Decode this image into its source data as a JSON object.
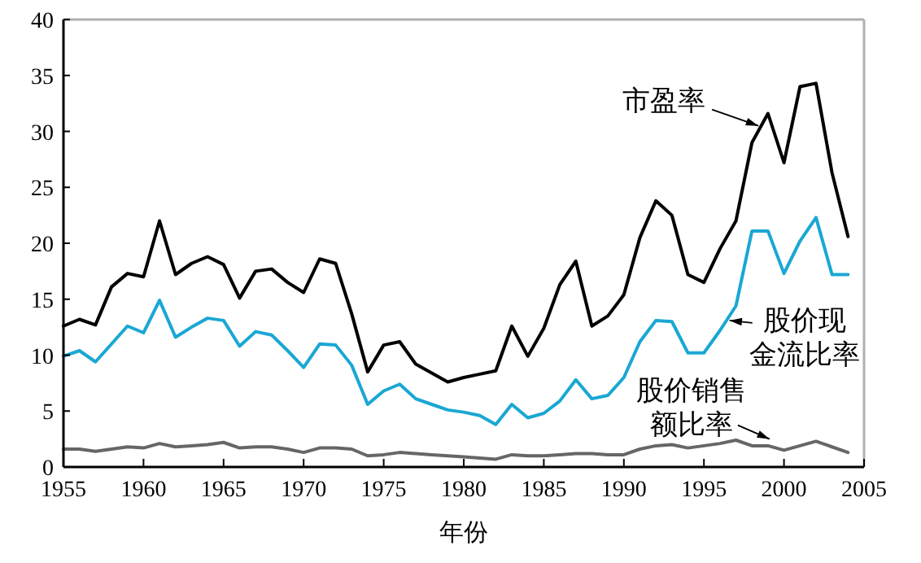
{
  "chart_data": {
    "type": "line",
    "xlabel": "年份",
    "x": [
      1955,
      1956,
      1957,
      1958,
      1959,
      1960,
      1961,
      1962,
      1963,
      1964,
      1965,
      1966,
      1967,
      1968,
      1969,
      1970,
      1971,
      1972,
      1973,
      1974,
      1975,
      1976,
      1977,
      1978,
      1979,
      1980,
      1981,
      1982,
      1983,
      1984,
      1985,
      1986,
      1987,
      1988,
      1989,
      1990,
      1991,
      1992,
      1993,
      1994,
      1995,
      1996,
      1997,
      1998,
      1999,
      2000,
      2001,
      2002,
      2003,
      2004
    ],
    "series": [
      {
        "color": "#000000",
        "values": [
          12.6,
          13.2,
          12.7,
          16.1,
          17.3,
          17.0,
          22.0,
          17.2,
          18.2,
          18.8,
          18.1,
          15.1,
          17.5,
          17.7,
          16.5,
          15.6,
          18.6,
          18.2,
          13.7,
          8.5,
          10.9,
          11.2,
          9.2,
          8.4,
          7.6,
          8.0,
          8.3,
          8.6,
          12.6,
          9.9,
          12.4,
          16.3,
          18.4,
          12.6,
          13.5,
          15.4,
          20.5,
          23.8,
          22.5,
          17.2,
          16.5,
          19.5,
          22.0,
          29.0,
          31.6,
          27.2,
          34.0,
          34.3,
          26.3,
          20.6
        ]
      },
      {
        "color": "#1aa7d4",
        "values": [
          9.9,
          10.4,
          9.4,
          11.0,
          12.6,
          12.0,
          14.9,
          11.6,
          12.5,
          13.3,
          13.1,
          10.8,
          12.1,
          11.8,
          10.4,
          8.9,
          11.0,
          10.9,
          9.1,
          5.6,
          6.8,
          7.4,
          6.1,
          5.6,
          5.1,
          4.9,
          4.6,
          3.8,
          5.6,
          4.4,
          4.8,
          5.9,
          7.8,
          6.1,
          6.4,
          8.0,
          11.2,
          13.1,
          13.0,
          10.2,
          10.2,
          12.2,
          14.4,
          21.1,
          21.1,
          17.3,
          20.2,
          22.3,
          17.2,
          17.2
        ]
      },
      {
        "color": "#666666",
        "values": [
          1.6,
          1.6,
          1.4,
          1.6,
          1.8,
          1.7,
          2.1,
          1.8,
          1.9,
          2.0,
          2.2,
          1.7,
          1.8,
          1.8,
          1.6,
          1.3,
          1.7,
          1.7,
          1.6,
          1.0,
          1.1,
          1.3,
          1.2,
          1.1,
          1.0,
          0.9,
          0.8,
          0.7,
          1.1,
          1.0,
          1.0,
          1.1,
          1.2,
          1.2,
          1.1,
          1.1,
          1.6,
          1.9,
          2.0,
          1.7,
          1.9,
          2.1,
          2.4,
          1.9,
          1.9,
          1.5,
          1.9,
          2.3,
          1.8,
          1.3
        ]
      }
    ],
    "xlim": [
      1955,
      2005
    ],
    "xticks": [
      1955,
      1960,
      1965,
      1970,
      1975,
      1980,
      1985,
      1990,
      1995,
      2000,
      2005
    ],
    "ylim": [
      0,
      40
    ],
    "yticks": [
      0,
      5,
      10,
      15,
      20,
      25,
      30,
      35,
      40
    ],
    "annotations": [
      {
        "text": "市盈率",
        "x": 1998.4,
        "y": 30.5
      },
      {
        "text": "股价现金流比率",
        "x": 1996.6,
        "y": 13.1
      },
      {
        "text": "股价销售额比率",
        "x": 1999.1,
        "y": 2.5
      }
    ],
    "grid": false,
    "marker": "none",
    "line_style": "solid"
  }
}
